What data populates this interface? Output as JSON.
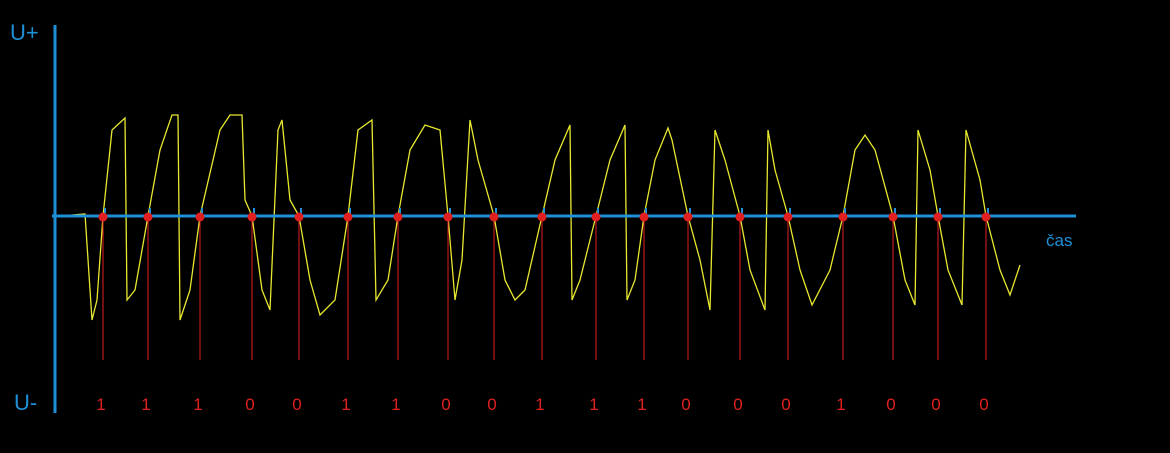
{
  "axis_labels": {
    "top": "U+",
    "bottom": "U-",
    "time": "čas"
  },
  "bits": [
    1,
    1,
    1,
    0,
    0,
    1,
    1,
    0,
    0,
    1,
    1,
    1,
    0,
    0,
    0,
    1,
    0,
    0,
    0
  ]
}
